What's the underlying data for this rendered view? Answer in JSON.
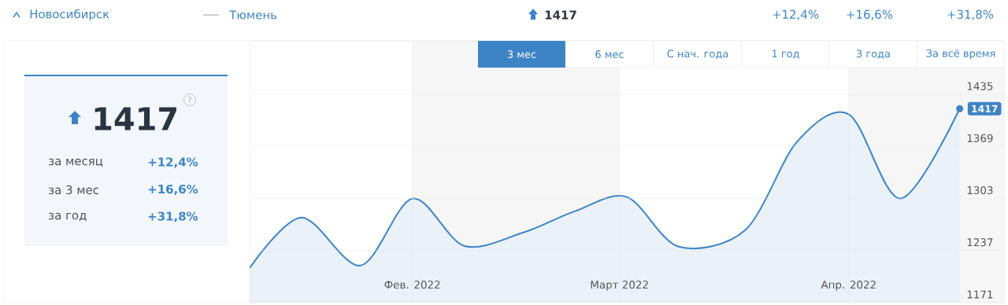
{
  "chart_data": [
    {
      "type": "other",
      "annotations": [
        "Новосибирск",
        "Тюмень",
        "1417",
        "+12,4%",
        "+16,6%",
        "+31,8%"
      ]
    },
    {
      "type": "other",
      "title": "1417",
      "annotations": [
        "?",
        "за месяц",
        "+12,4%",
        "за 3 мес",
        "+16,6%",
        "за год",
        "+31,8%"
      ]
    },
    {
      "type": "area",
      "annotations": [
        "3 мес",
        "6 мес",
        "С нач. года",
        "1 год",
        "3 года",
        "За всё время"
      ],
      "x": [
        "2022-01-10",
        "2022-01-17",
        "2022-01-25",
        "2022-02-01",
        "2022-02-08",
        "2022-02-16",
        "2022-02-23",
        "2022-03-02",
        "2022-03-09",
        "2022-03-18",
        "2022-03-25",
        "2022-04-01",
        "2022-04-08",
        "2022-04-16"
      ],
      "series": [
        {
          "color": "#3d84c6",
          "values": [
            1215,
            1279,
            1218,
            1303,
            1243,
            1260,
            1287,
            1305,
            1242,
            1263,
            1375,
            1410,
            1303,
            1417
          ],
          "value_labels": [
            null,
            null,
            null,
            null,
            null,
            null,
            null,
            null,
            null,
            null,
            null,
            null,
            null,
            "1417"
          ]
        }
      ],
      "xlim": [
        "2022-01-10",
        "2022-04-22"
      ],
      "xticks": [
        {
          "value": "2022-02-01",
          "label": "Фев. 2022"
        },
        {
          "value": "2022-03-01",
          "label": "Март 2022"
        },
        {
          "value": "2022-04-01",
          "label": "Апр. 2022"
        }
      ],
      "ylim": [
        1171,
        1503
      ],
      "yticks": [
        1171,
        1237,
        1303,
        1369,
        1435
      ],
      "bands": [
        {
          "axis": "x",
          "from": "2022-02-01",
          "to": "2022-03-01",
          "color": "#f6f6f6"
        },
        {
          "axis": "x",
          "from": "2022-04-01",
          "to": "2022-04-22",
          "color": "#f6f6f6"
        }
      ],
      "grid": true,
      "marker": "none",
      "line_style": "solid"
    }
  ]
}
